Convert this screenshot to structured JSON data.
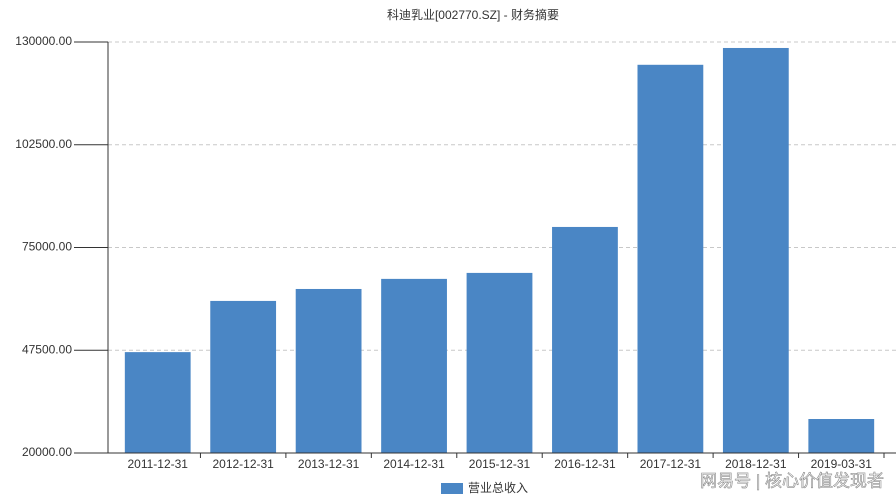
{
  "chart_data": {
    "type": "bar",
    "title": "科迪乳业[002770.SZ] - 财务摘要",
    "categories": [
      "2011-12-31",
      "2012-12-31",
      "2013-12-31",
      "2014-12-31",
      "2015-12-31",
      "2016-12-31",
      "2017-12-31",
      "2018-12-31",
      "2019-03-31"
    ],
    "series": [
      {
        "name": "营业总收入",
        "color": "#4a86c5",
        "values": [
          47000,
          60700,
          63900,
          66600,
          68200,
          80500,
          123900,
          128400,
          29100
        ]
      }
    ],
    "ylim": [
      20000,
      130000
    ],
    "yticks": [
      {
        "value": 20000,
        "label": "20000.00"
      },
      {
        "value": 47500,
        "label": "47500.00"
      },
      {
        "value": 75000,
        "label": "75000.00"
      },
      {
        "value": 102500,
        "label": "102500.00"
      },
      {
        "value": 130000,
        "label": "130000.00"
      }
    ],
    "grid": true,
    "legend": "bottom",
    "watermark": "网易号 | 核心价值发现者"
  }
}
